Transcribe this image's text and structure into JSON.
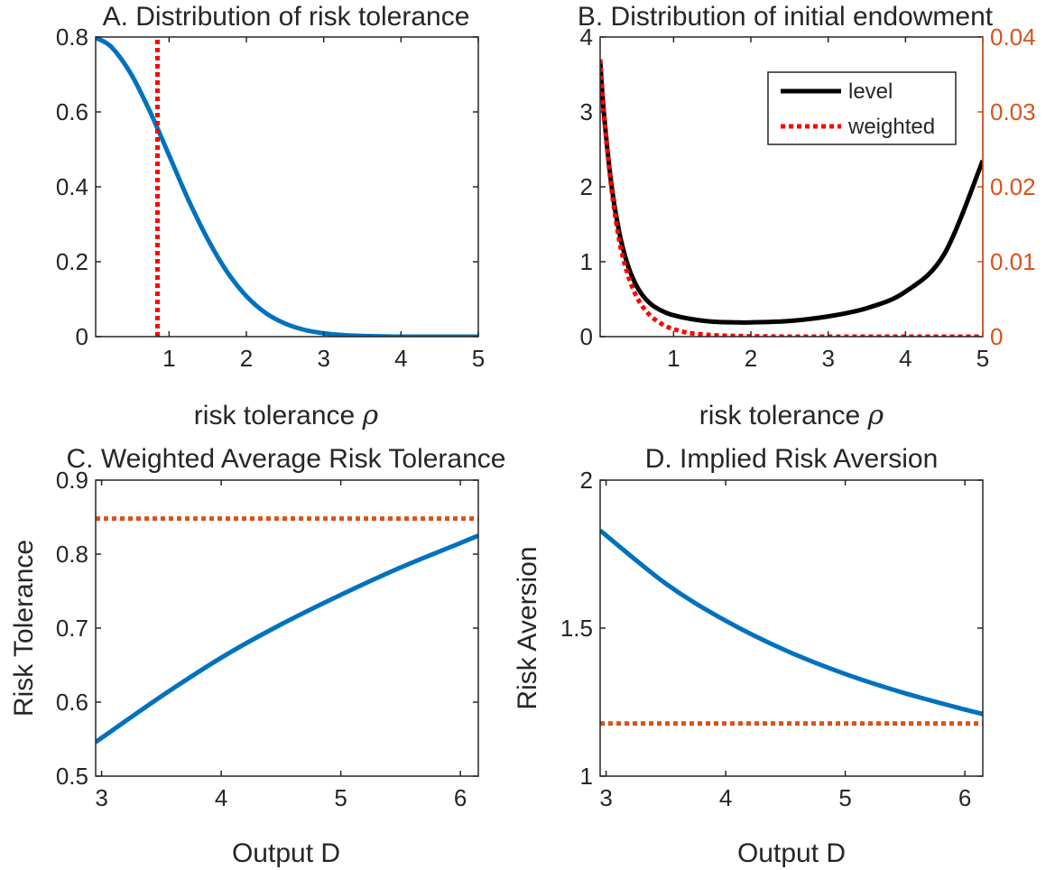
{
  "chart_data": [
    {
      "panel": "A",
      "type": "line",
      "title": "A. Distribution of risk tolerance",
      "xlabel": "risk tolerance",
      "xlabel_symbol": "ρ",
      "ylabel": "",
      "xlim": [
        0.05,
        5
      ],
      "ylim": [
        0,
        0.8
      ],
      "xticks": [
        "1",
        "2",
        "3",
        "4",
        "5"
      ],
      "yticks": [
        "0",
        "0.2",
        "0.4",
        "0.6",
        "0.8"
      ],
      "grid": false,
      "series": [
        {
          "style": "solid",
          "color": "#0072BD",
          "x": [
            0.05,
            0.25,
            0.5,
            0.75,
            1.0,
            1.25,
            1.5,
            1.75,
            2.0,
            2.25,
            2.5,
            2.75,
            3.0,
            3.25,
            3.5,
            4.0,
            4.5,
            5.0
          ],
          "y": [
            0.798,
            0.774,
            0.704,
            0.602,
            0.484,
            0.365,
            0.26,
            0.173,
            0.108,
            0.063,
            0.035,
            0.018,
            0.009,
            0.004,
            0.002,
            0.0,
            0.0,
            0.0
          ]
        },
        {
          "style": "dotted",
          "color": "#FF0000",
          "x": [
            0.85,
            0.85
          ],
          "y": [
            0,
            0.8
          ]
        }
      ]
    },
    {
      "panel": "B",
      "type": "line",
      "title": "B. Distribution of initial endowment",
      "xlabel": "risk tolerance",
      "xlabel_symbol": "ρ",
      "xlim": [
        0.05,
        5
      ],
      "ylim_left": [
        0,
        4
      ],
      "ylim_right": [
        0,
        0.04
      ],
      "xticks": [
        "1",
        "2",
        "3",
        "4",
        "5"
      ],
      "yticks_left": [
        "0",
        "1",
        "2",
        "3",
        "4"
      ],
      "yticks_right": [
        "0",
        "0.01",
        "0.02",
        "0.03",
        "0.04"
      ],
      "right_axis_color": "#D95319",
      "legend": "top-right",
      "series": [
        {
          "name": "level",
          "axis": "left",
          "style": "solid",
          "color": "#000000",
          "x": [
            0.05,
            0.1,
            0.2,
            0.3,
            0.4,
            0.5,
            0.6,
            0.7,
            0.8,
            0.9,
            1.0,
            1.2,
            1.5,
            1.8,
            2.0,
            2.5,
            3.0,
            3.5,
            4.0,
            4.5,
            5.0
          ],
          "y": [
            3.7,
            2.97,
            2.0,
            1.38,
            0.98,
            0.72,
            0.55,
            0.44,
            0.37,
            0.32,
            0.285,
            0.24,
            0.2,
            0.19,
            0.19,
            0.21,
            0.27,
            0.38,
            0.6,
            1.1,
            2.35
          ]
        },
        {
          "name": "weighted",
          "axis": "right",
          "style": "dotted",
          "color": "#FF0000",
          "x": [
            0.05,
            0.1,
            0.2,
            0.3,
            0.4,
            0.5,
            0.6,
            0.7,
            0.8,
            0.9,
            1.0,
            1.2,
            1.5,
            1.8,
            2.0,
            2.5,
            3.0,
            4.0,
            5.0
          ],
          "y": [
            0.037,
            0.0295,
            0.0195,
            0.0127,
            0.0085,
            0.0058,
            0.004,
            0.0028,
            0.002,
            0.0014,
            0.001,
            0.0005,
            0.0002,
            0.0001,
            5e-05,
            0.0,
            0.0,
            0.0,
            0.0
          ]
        }
      ]
    },
    {
      "panel": "C",
      "type": "line",
      "title": "C. Weighted Average Risk Tolerance",
      "xlabel": "Output D",
      "ylabel": "Risk Tolerance",
      "xlim": [
        2.95,
        6.15
      ],
      "ylim": [
        0.5,
        0.9
      ],
      "xticks": [
        "3",
        "4",
        "5",
        "6"
      ],
      "yticks": [
        "0.5",
        "0.6",
        "0.7",
        "0.8",
        "0.9"
      ],
      "grid": false,
      "series": [
        {
          "style": "solid",
          "color": "#0072BD",
          "x": [
            2.95,
            3.5,
            4.0,
            4.5,
            5.0,
            5.5,
            6.0,
            6.15
          ],
          "y": [
            0.546,
            0.608,
            0.66,
            0.705,
            0.745,
            0.782,
            0.815,
            0.825
          ]
        },
        {
          "style": "dotted",
          "color": "#D95319",
          "x": [
            2.95,
            6.15
          ],
          "y": [
            0.848,
            0.848
          ]
        }
      ]
    },
    {
      "panel": "D",
      "type": "line",
      "title": "D. Implied Risk Aversion",
      "xlabel": "Output D",
      "ylabel": "Risk Aversion",
      "xlim": [
        2.95,
        6.15
      ],
      "ylim": [
        1,
        2
      ],
      "xticks": [
        "3",
        "4",
        "5",
        "6"
      ],
      "yticks": [
        "1",
        "1.5",
        "2"
      ],
      "grid": false,
      "series": [
        {
          "style": "solid",
          "color": "#0072BD",
          "x": [
            2.95,
            3.5,
            4.0,
            4.5,
            5.0,
            5.5,
            6.0,
            6.15
          ],
          "y": [
            1.83,
            1.65,
            1.525,
            1.425,
            1.345,
            1.28,
            1.225,
            1.21
          ]
        },
        {
          "style": "dotted",
          "color": "#D95319",
          "x": [
            2.95,
            6.15
          ],
          "y": [
            1.178,
            1.178
          ]
        }
      ]
    }
  ]
}
